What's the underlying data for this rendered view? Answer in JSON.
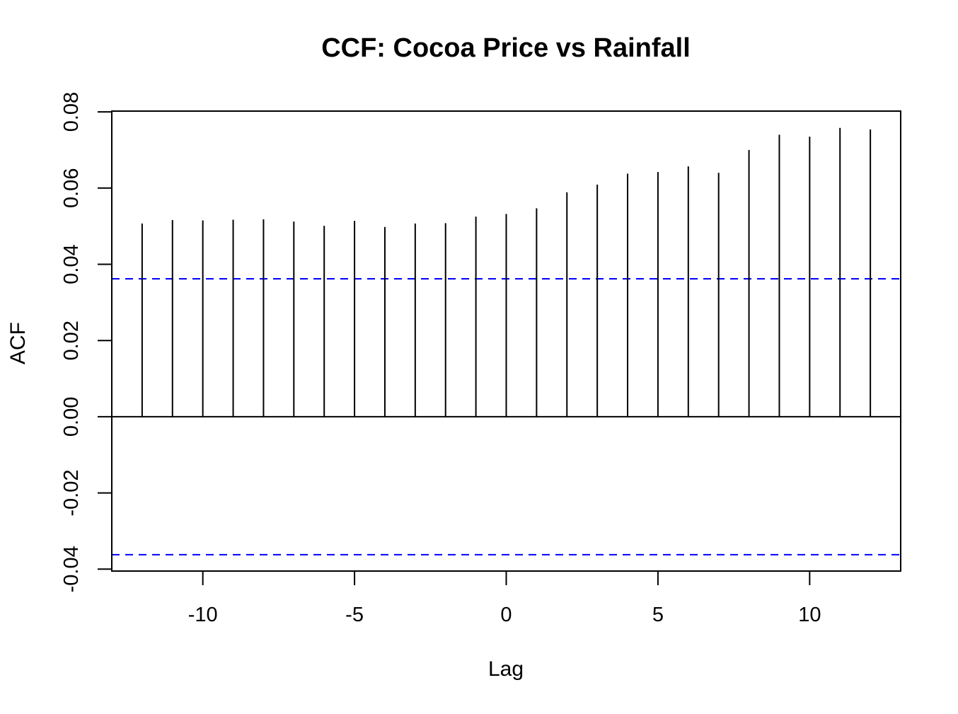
{
  "chart_data": {
    "type": "bar",
    "title": "CCF: Cocoa Price vs Rainfall",
    "xlabel": "Lag",
    "ylabel": "ACF",
    "xlim": [
      -13,
      13
    ],
    "ylim": [
      -0.04,
      0.08
    ],
    "x_ticks": [
      -10,
      -5,
      0,
      5,
      10
    ],
    "x_tick_labels": [
      "-10",
      "-5",
      "0",
      "5",
      "10"
    ],
    "y_ticks": [
      -0.04,
      -0.02,
      0.0,
      0.02,
      0.04,
      0.06,
      0.08
    ],
    "y_tick_labels": [
      "-0.04",
      "-0.02",
      "0.00",
      "0.02",
      "0.04",
      "0.06",
      "0.08"
    ],
    "confidence_band": 0.0362,
    "confidence_color": "#0000ff",
    "bar_color": "#000000",
    "lags": [
      -12,
      -11,
      -10,
      -9,
      -8,
      -7,
      -6,
      -5,
      -4,
      -3,
      -2,
      -1,
      0,
      1,
      2,
      3,
      4,
      5,
      6,
      7,
      8,
      9,
      10,
      11,
      12
    ],
    "values": [
      0.0507,
      0.0516,
      0.0515,
      0.0517,
      0.0518,
      0.0512,
      0.0501,
      0.0514,
      0.0498,
      0.0507,
      0.0508,
      0.0525,
      0.0532,
      0.0547,
      0.0589,
      0.0609,
      0.0638,
      0.0642,
      0.0657,
      0.064,
      0.07,
      0.074,
      0.0735,
      0.0758,
      0.0754
    ],
    "grid": false,
    "legend": "none"
  }
}
